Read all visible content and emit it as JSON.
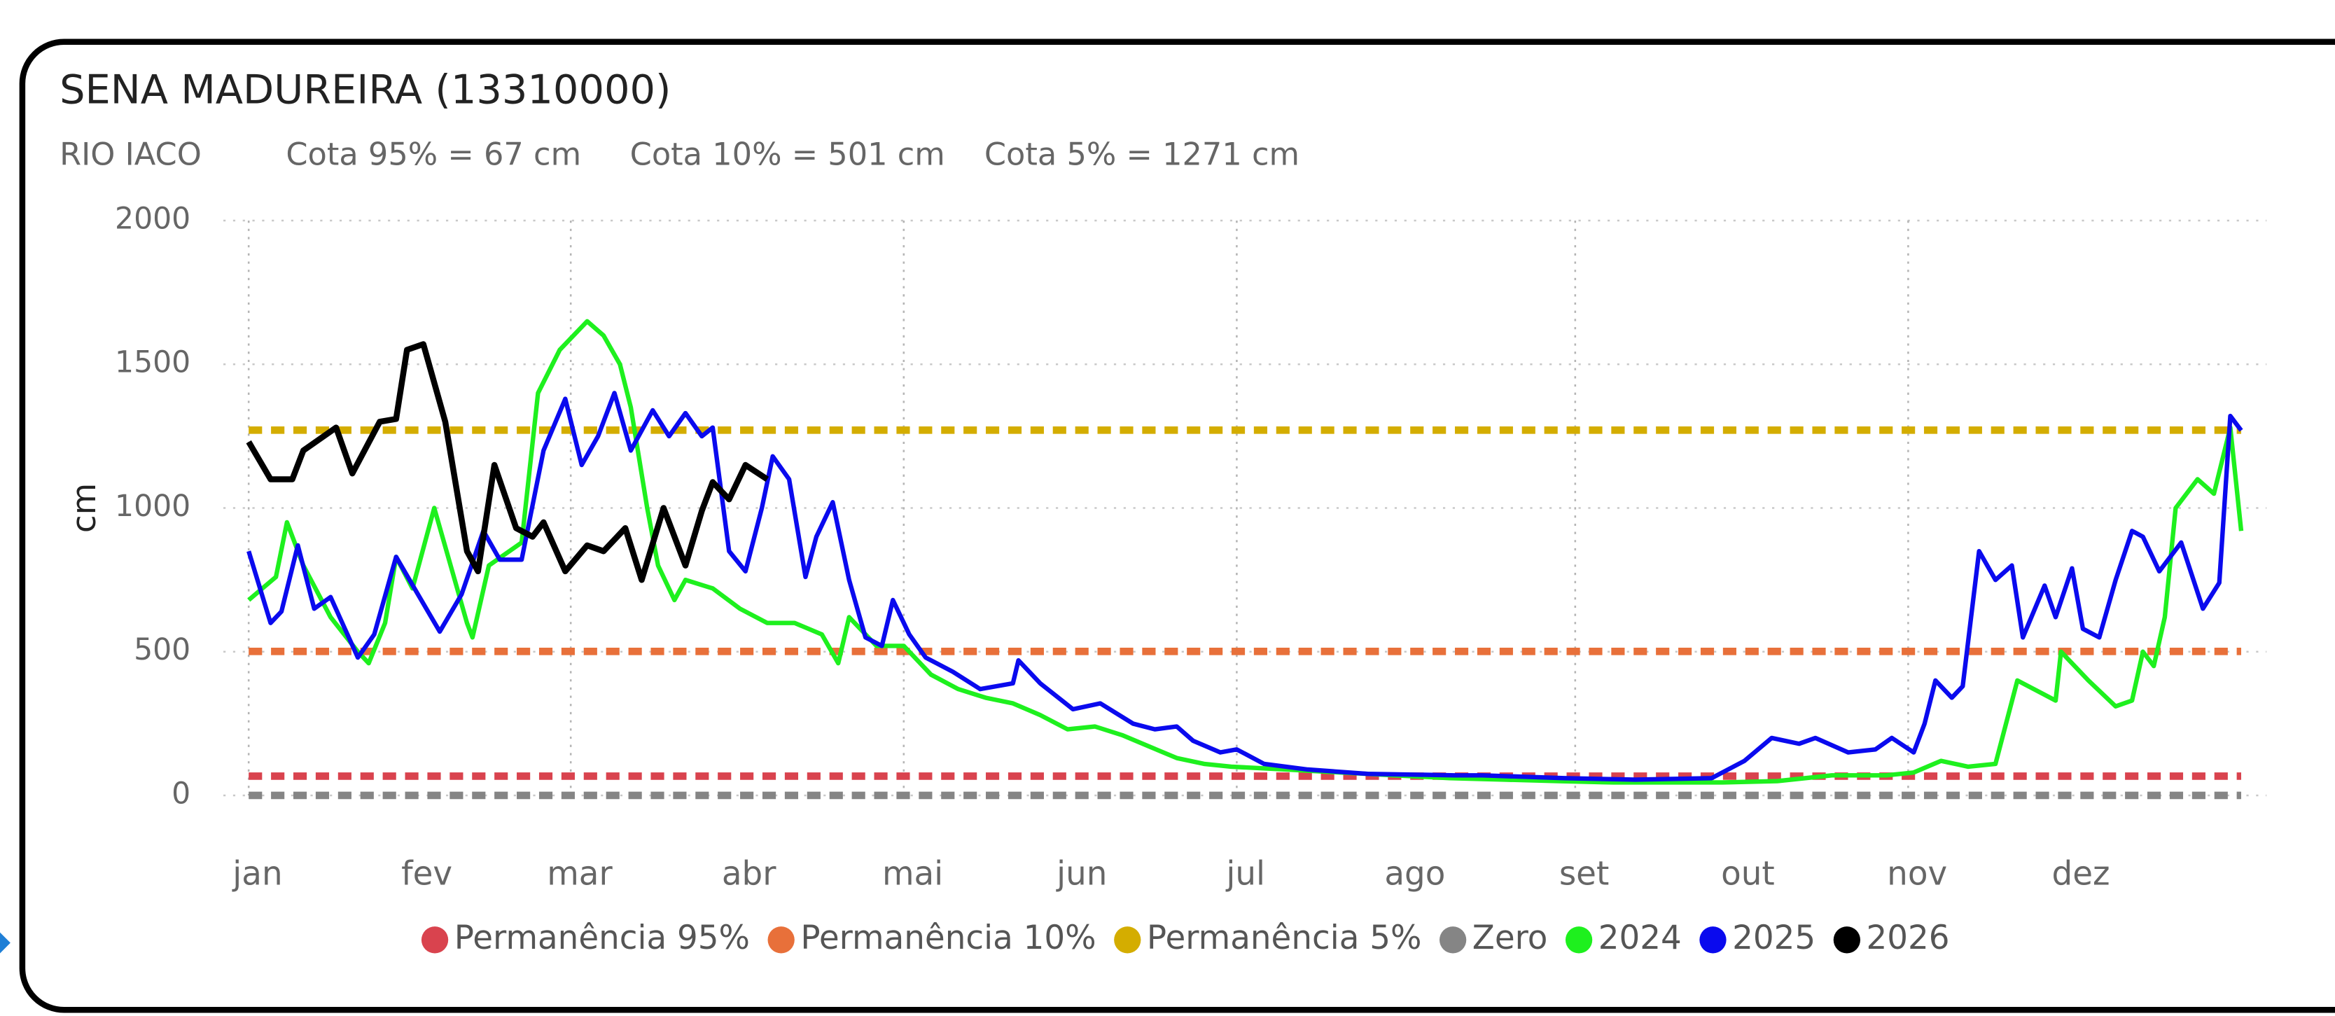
{
  "chart_data": {
    "type": "line",
    "title": "SENA MADUREIRA (13310000)",
    "subtitle": [
      "RIO IACO",
      "Cota 95% = 67 cm",
      "Cota 10% = 501 cm",
      "Cota 5% = 1271 cm"
    ],
    "ylabel": "cm",
    "xlim": [
      0,
      365
    ],
    "ylim": [
      0,
      2000
    ],
    "yticks": [
      0,
      500,
      1000,
      1500,
      2000
    ],
    "xticks": [
      {
        "value": 0,
        "label": "jan"
      },
      {
        "value": 31,
        "label": "fev"
      },
      {
        "value": 59,
        "label": "mar"
      },
      {
        "value": 90,
        "label": "abr"
      },
      {
        "value": 120,
        "label": "mai"
      },
      {
        "value": 151,
        "label": "jun"
      },
      {
        "value": 181,
        "label": "jul"
      },
      {
        "value": 212,
        "label": "ago"
      },
      {
        "value": 243,
        "label": "set"
      },
      {
        "value": 273,
        "label": "out"
      },
      {
        "value": 304,
        "label": "nov"
      },
      {
        "value": 334,
        "label": "dez"
      }
    ],
    "grid": true,
    "legend": "bottom",
    "reference_lines": [
      {
        "name": "Permanência 95%",
        "color": "#d9434e",
        "value": 67
      },
      {
        "name": "Permanência 10%",
        "color": "#e8703a",
        "value": 501
      },
      {
        "name": "Permanência 5%",
        "color": "#d4ad00",
        "value": 1271
      },
      {
        "name": "Zero",
        "color": "#858585",
        "value": 0
      }
    ],
    "series": [
      {
        "name": "2024",
        "color": "#1ef01e",
        "x": [
          0,
          5,
          7,
          10,
          15,
          20,
          22,
          25,
          27,
          30,
          34,
          40,
          41,
          44,
          50,
          53,
          57,
          62,
          65,
          68,
          70,
          73,
          75,
          78,
          80,
          85,
          90,
          95,
          100,
          105,
          108,
          110,
          115,
          120,
          125,
          130,
          135,
          140,
          145,
          150,
          155,
          160,
          165,
          170,
          175,
          180,
          190,
          200,
          210,
          220,
          230,
          240,
          250,
          260,
          270,
          280,
          290,
          300,
          305,
          310,
          315,
          320,
          324,
          331,
          332,
          337,
          342,
          345,
          347,
          349,
          351,
          353,
          357,
          360,
          363,
          365
        ],
        "values": [
          680,
          760,
          950,
          800,
          620,
          500,
          460,
          600,
          830,
          720,
          1000,
          600,
          550,
          800,
          880,
          1400,
          1550,
          1650,
          1600,
          1500,
          1350,
          1000,
          800,
          680,
          750,
          720,
          650,
          600,
          600,
          560,
          460,
          620,
          520,
          520,
          420,
          370,
          340,
          320,
          280,
          230,
          240,
          210,
          170,
          130,
          110,
          100,
          90,
          80,
          70,
          60,
          55,
          50,
          45,
          45,
          45,
          50,
          70,
          70,
          80,
          120,
          100,
          110,
          400,
          330,
          500,
          400,
          310,
          330,
          500,
          450,
          620,
          1000,
          1100,
          1050,
          1280,
          920
        ]
      },
      {
        "name": "2025",
        "color": "#0a0aee",
        "x": [
          0,
          4,
          6,
          9,
          12,
          15,
          20,
          23,
          27,
          31,
          35,
          39,
          43,
          46,
          50,
          54,
          58,
          61,
          64,
          67,
          70,
          74,
          77,
          80,
          83,
          85,
          88,
          91,
          94,
          96,
          99,
          102,
          104,
          107,
          110,
          113,
          116,
          118,
          121,
          124,
          129,
          134,
          140,
          141,
          145,
          151,
          156,
          162,
          166,
          170,
          173,
          178,
          181,
          186,
          194,
          205,
          221,
          226,
          241,
          254,
          268,
          274,
          279,
          284,
          287,
          293,
          298,
          301,
          305,
          307,
          309,
          312,
          314,
          317,
          320,
          323,
          325,
          329,
          331,
          334,
          336,
          339,
          342,
          345,
          347,
          350,
          354,
          358,
          361,
          363,
          365
        ],
        "values": [
          850,
          600,
          640,
          870,
          650,
          690,
          480,
          560,
          830,
          700,
          570,
          700,
          920,
          820,
          820,
          1200,
          1380,
          1150,
          1250,
          1400,
          1200,
          1340,
          1250,
          1330,
          1250,
          1280,
          850,
          780,
          1000,
          1180,
          1100,
          760,
          900,
          1020,
          750,
          550,
          520,
          680,
          560,
          480,
          430,
          370,
          390,
          470,
          390,
          300,
          320,
          250,
          230,
          240,
          190,
          150,
          160,
          110,
          90,
          75,
          70,
          70,
          60,
          55,
          60,
          120,
          200,
          180,
          200,
          150,
          160,
          200,
          150,
          250,
          400,
          340,
          380,
          850,
          750,
          800,
          550,
          730,
          620,
          790,
          580,
          550,
          750,
          920,
          900,
          780,
          880,
          650,
          740,
          1320,
          1270
        ]
      },
      {
        "name": "2026",
        "color": "#000000",
        "x": [
          0,
          4,
          8,
          10,
          16,
          19,
          24,
          27,
          29,
          32,
          36,
          40,
          42,
          45,
          49,
          52,
          54,
          58,
          62,
          65,
          69,
          72,
          76,
          80,
          83,
          85,
          88,
          91,
          95
        ],
        "values": [
          1230,
          1100,
          1100,
          1200,
          1280,
          1120,
          1300,
          1310,
          1550,
          1570,
          1300,
          850,
          780,
          1150,
          930,
          900,
          950,
          780,
          870,
          850,
          930,
          750,
          1000,
          800,
          990,
          1090,
          1030,
          1150,
          1100
        ]
      }
    ]
  }
}
